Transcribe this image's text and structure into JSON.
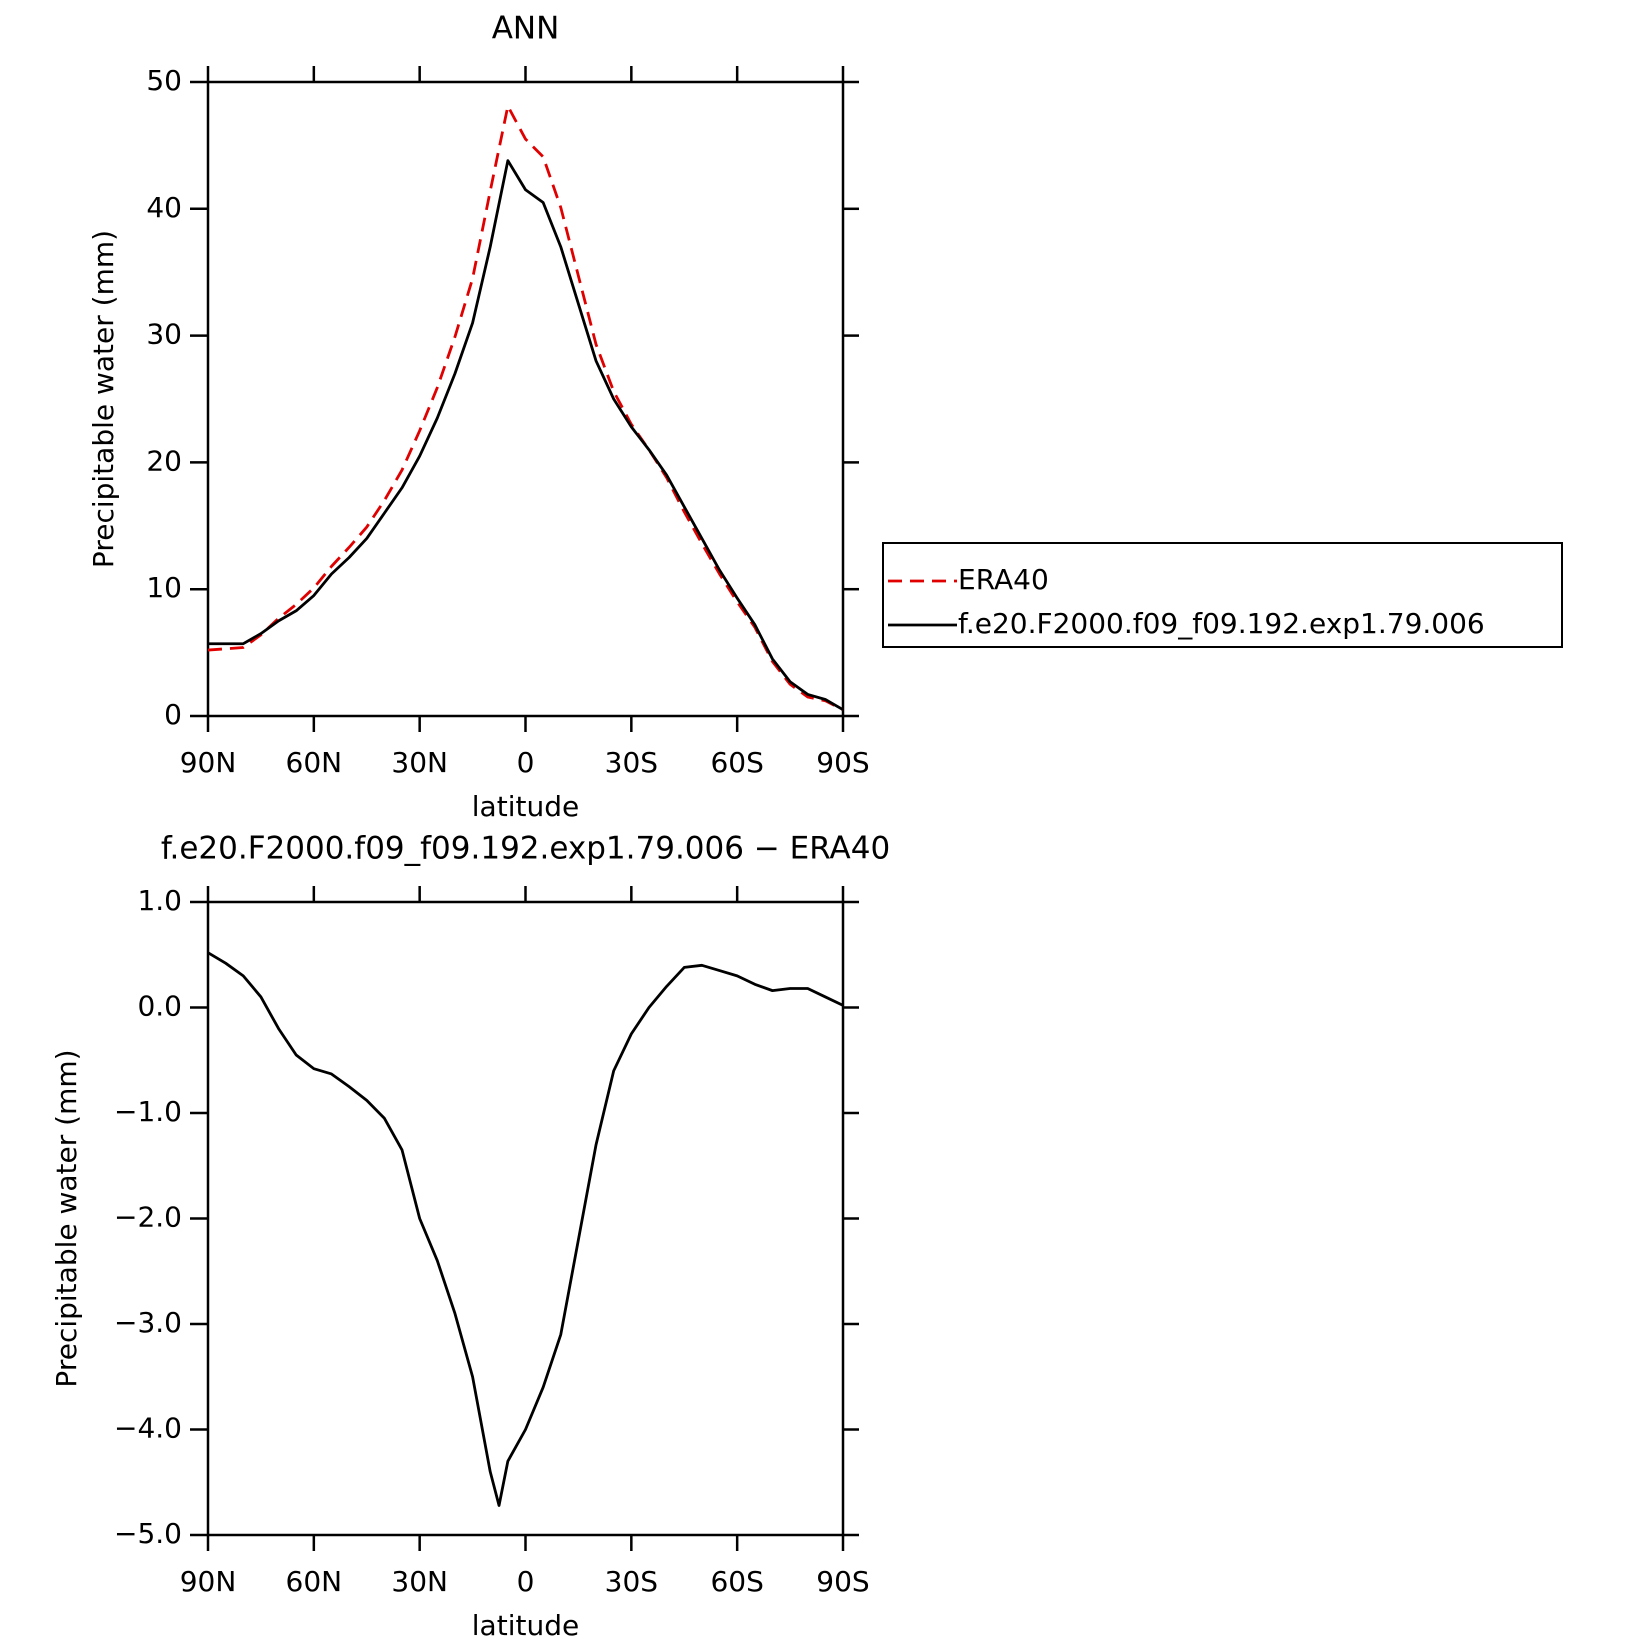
{
  "chart_data": [
    {
      "type": "line",
      "title": "ANN",
      "xlabel": "latitude",
      "ylabel": "Precipitable water (mm)",
      "x": [
        90,
        85,
        80,
        75,
        70,
        65,
        60,
        55,
        50,
        45,
        40,
        35,
        30,
        25,
        20,
        15,
        10,
        5,
        0,
        -5,
        -10,
        -15,
        -20,
        -25,
        -30,
        -35,
        -40,
        -45,
        -50,
        -55,
        -60,
        -65,
        -70,
        -75,
        -80,
        -85,
        -90
      ],
      "series": [
        {
          "name": "ERA40",
          "color": "#e00000",
          "line_style": "dashed",
          "values": [
            5.2,
            5.3,
            5.4,
            6.4,
            7.7,
            8.8,
            10.1,
            11.8,
            13.3,
            14.9,
            17,
            19.4,
            22.5,
            25.9,
            29.9,
            34.5,
            41.4,
            48.1,
            45.5,
            44.1,
            40.1,
            34.7,
            29.3,
            25.6,
            23,
            21,
            18.8,
            16.1,
            13.6,
            11.2,
            9,
            7,
            4.3,
            2.5,
            1.5,
            1.2,
            0.5
          ]
        },
        {
          "name": "f.e20.F2000.f09_f09.192.exp1.79.006",
          "color": "#000000",
          "line_style": "solid",
          "values": [
            5.7,
            5.7,
            5.7,
            6.5,
            7.5,
            8.3,
            9.5,
            11.2,
            12.5,
            14,
            16,
            18,
            20.5,
            23.5,
            27,
            31,
            37,
            43.8,
            41.5,
            40.5,
            37,
            32.5,
            28,
            25,
            22.8,
            21,
            19,
            16.5,
            14,
            11.5,
            9.3,
            7.2,
            4.5,
            2.7,
            1.7,
            1.3,
            0.5
          ]
        }
      ],
      "xlim": [
        90,
        -90
      ],
      "xticks": [
        {
          "value": 90,
          "label": "90N"
        },
        {
          "value": 60,
          "label": "60N"
        },
        {
          "value": 30,
          "label": "30N"
        },
        0,
        {
          "value": -30,
          "label": "30S"
        },
        {
          "value": -60,
          "label": "60S"
        },
        {
          "value": -90,
          "label": "90S"
        }
      ],
      "ylim": [
        0,
        50
      ],
      "yticks": [
        0,
        10,
        20,
        30,
        40,
        50
      ],
      "legend": "right"
    },
    {
      "type": "line",
      "title": "f.e20.F2000.f09_f09.192.exp1.79.006 − ERA40",
      "xlabel": "latitude",
      "ylabel": "Precipitable water (mm)",
      "x": [
        90,
        85,
        80,
        75,
        70,
        65,
        60,
        55,
        50,
        45,
        40,
        35,
        30,
        25,
        20,
        15,
        10,
        7.5,
        5,
        0,
        -5,
        -10,
        -15,
        -20,
        -25,
        -30,
        -35,
        -40,
        -45,
        -50,
        -55,
        -60,
        -65,
        -70,
        -75,
        -80,
        -85,
        -90
      ],
      "series": [
        {
          "color": "#000000",
          "line_style": "solid",
          "values": [
            0.52,
            0.42,
            0.3,
            0.1,
            -0.2,
            -0.45,
            -0.58,
            -0.63,
            -0.75,
            -0.88,
            -1.05,
            -1.35,
            -2.0,
            -2.4,
            -2.9,
            -3.5,
            -4.4,
            -4.72,
            -4.3,
            -4.0,
            -3.6,
            -3.1,
            -2.2,
            -1.3,
            -0.6,
            -0.25,
            0.0,
            0.2,
            0.38,
            0.4,
            0.35,
            0.3,
            0.22,
            0.16,
            0.18,
            0.18,
            0.1,
            0.02
          ]
        }
      ],
      "xlim": [
        90,
        -90
      ],
      "xticks": [
        {
          "value": 90,
          "label": "90N"
        },
        {
          "value": 60,
          "label": "60N"
        },
        {
          "value": 30,
          "label": "30N"
        },
        0,
        {
          "value": -30,
          "label": "30S"
        },
        {
          "value": -60,
          "label": "60S"
        },
        {
          "value": -90,
          "label": "90S"
        }
      ],
      "ylim": [
        -5,
        1
      ],
      "yticks": [
        {
          "value": -5,
          "label": "−5.0"
        },
        {
          "value": -4,
          "label": "−4.0"
        },
        {
          "value": -3,
          "label": "−3.0"
        },
        {
          "value": -2,
          "label": "−2.0"
        },
        {
          "value": -1,
          "label": "−1.0"
        },
        {
          "value": 0,
          "label": "0.0"
        },
        {
          "value": 1,
          "label": "1.0"
        }
      ]
    }
  ]
}
